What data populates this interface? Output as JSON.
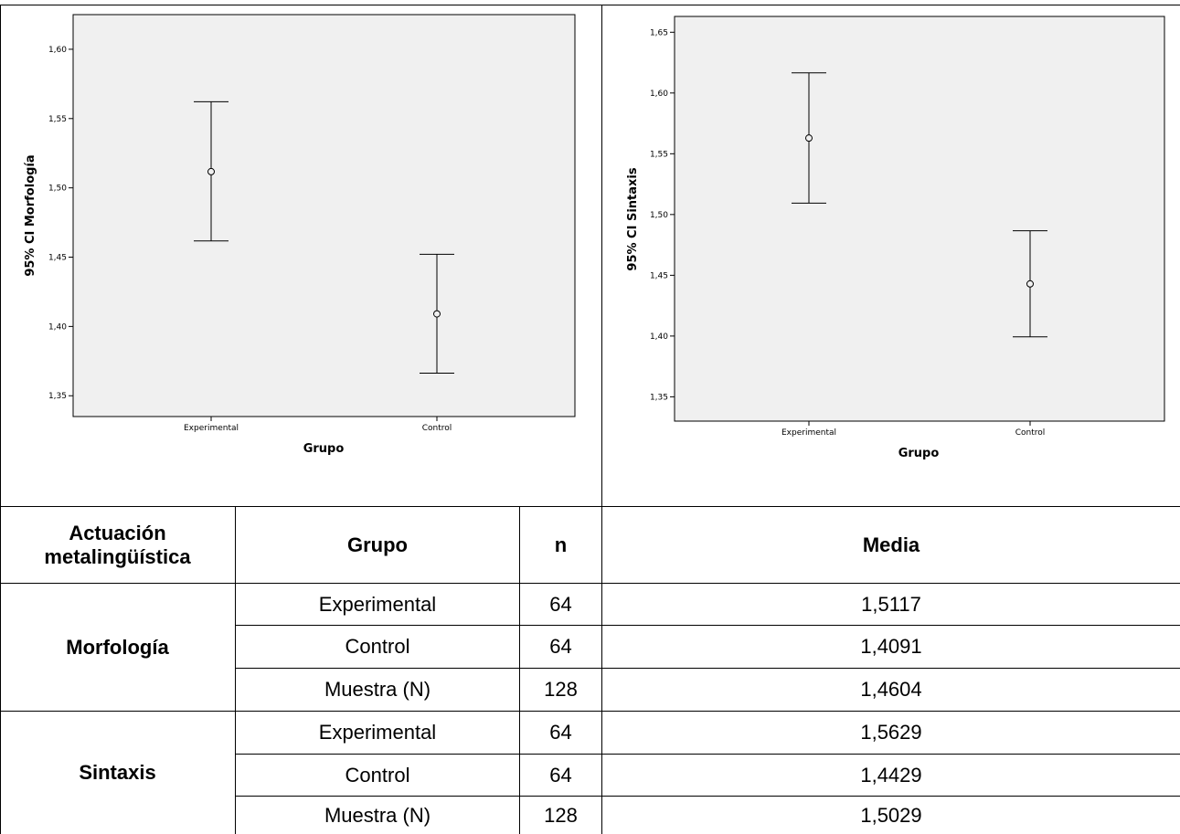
{
  "chart_data": [
    {
      "type": "errorbar",
      "xlabel": "Grupo",
      "ylabel": "95% CI Morfología",
      "ylim": [
        1.335,
        1.625
      ],
      "yticks": [
        "1,35",
        "1,40",
        "1,45",
        "1,50",
        "1,55",
        "1,60"
      ],
      "ytick_values": [
        1.35,
        1.4,
        1.45,
        1.5,
        1.55,
        1.6
      ],
      "categories": [
        "Experimental",
        "Control"
      ],
      "points": [
        {
          "category": "Experimental",
          "mean": 1.5117,
          "lower": 1.4617,
          "upper": 1.5621
        },
        {
          "category": "Control",
          "mean": 1.4091,
          "lower": 1.3663,
          "upper": 1.4521
        }
      ],
      "grid": false,
      "background": "#f0f0f0"
    },
    {
      "type": "errorbar",
      "xlabel": "Grupo",
      "ylabel": "95% CI Sintaxis",
      "ylim": [
        1.33,
        1.663
      ],
      "yticks": [
        "1,35",
        "1,40",
        "1,45",
        "1,50",
        "1,55",
        "1,60",
        "1,65"
      ],
      "ytick_values": [
        1.35,
        1.4,
        1.45,
        1.5,
        1.55,
        1.6,
        1.65
      ],
      "categories": [
        "Experimental",
        "Control"
      ],
      "points": [
        {
          "category": "Experimental",
          "mean": 1.5629,
          "lower": 1.5094,
          "upper": 1.6166
        },
        {
          "category": "Control",
          "mean": 1.4429,
          "lower": 1.3993,
          "upper": 1.4866
        }
      ],
      "grid": false,
      "background": "#f0f0f0"
    }
  ],
  "table": {
    "headers": {
      "actuacion_line1": "Actuación",
      "actuacion_line2": "metalingüística",
      "grupo": "Grupo",
      "n": "n",
      "media": "Media"
    },
    "groups": [
      {
        "name": "Morfología",
        "rows": [
          {
            "grupo": "Experimental",
            "n": "64",
            "media": "1,5117"
          },
          {
            "grupo": "Control",
            "n": "64",
            "media": "1,4091"
          },
          {
            "grupo": "Muestra (N)",
            "n": "128",
            "media": "1,4604"
          }
        ]
      },
      {
        "name": "Sintaxis",
        "rows": [
          {
            "grupo": "Experimental",
            "n": "64",
            "media": "1,5629"
          },
          {
            "grupo": "Control",
            "n": "64",
            "media": "1,4429"
          },
          {
            "grupo": "Muestra (N)",
            "n": "128",
            "media": "1,5029"
          }
        ]
      }
    ]
  }
}
